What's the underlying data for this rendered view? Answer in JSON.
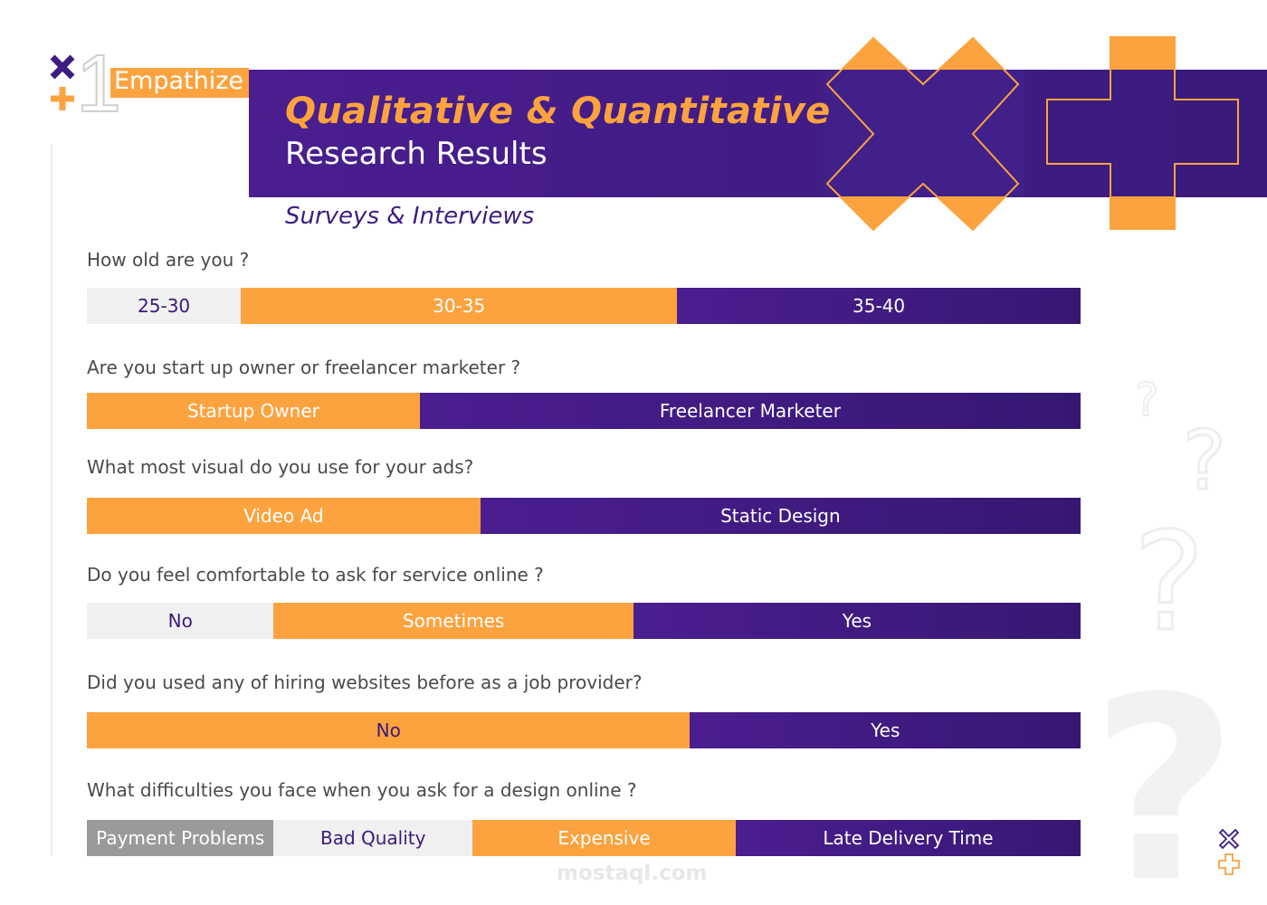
{
  "header": {
    "step_number": "1",
    "step_label": "Empathize",
    "title_main": "Qualitative & Quantitative",
    "title_sub": "Research Results",
    "section_subtitle": "Surveys & Interviews"
  },
  "questions": [
    {
      "text": "How old are you ?",
      "segments": [
        {
          "label": "25-30",
          "share": 15.5,
          "style": "light"
        },
        {
          "label": "30-35",
          "share": 43.9,
          "style": "orange"
        },
        {
          "label": "35-40",
          "share": 40.6,
          "style": "purple"
        }
      ]
    },
    {
      "text": "Are you start up owner or freelancer marketer ?",
      "segments": [
        {
          "label": "Startup Owner",
          "share": 33.5,
          "style": "orange"
        },
        {
          "label": "Freelancer Marketer",
          "share": 66.5,
          "style": "purple"
        }
      ]
    },
    {
      "text": "What most visual do you use for your ads?",
      "segments": [
        {
          "label": "Video Ad",
          "share": 39.6,
          "style": "orange"
        },
        {
          "label": "Static Design",
          "share": 60.4,
          "style": "purple"
        }
      ]
    },
    {
      "text": "Do you feel comfortable to ask for service online ?",
      "segments": [
        {
          "label": "No",
          "share": 18.8,
          "style": "light"
        },
        {
          "label": "Sometimes",
          "share": 36.2,
          "style": "orange"
        },
        {
          "label": "Yes",
          "share": 45.0,
          "style": "purple"
        }
      ]
    },
    {
      "text": "Did you used any of hiring websites before as a job provider?",
      "segments": [
        {
          "label": "No",
          "share": 60.7,
          "style": "orange-dark"
        },
        {
          "label": "Yes",
          "share": 39.3,
          "style": "purple"
        }
      ]
    },
    {
      "text": "What difficulties you face when you ask for a design online ?",
      "segments": [
        {
          "label": "Payment Problems",
          "share": 18.8,
          "style": "gray"
        },
        {
          "label": "Bad Quality",
          "share": 20.0,
          "style": "light"
        },
        {
          "label": "Expensive",
          "share": 26.5,
          "style": "orange"
        },
        {
          "label": "Late Delivery Time",
          "share": 34.7,
          "style": "purple"
        }
      ]
    }
  ],
  "watermark": "mostaql.com",
  "colors": {
    "accent_orange": "#fca33f",
    "brand_purple": "#3e1d82",
    "light_segment": "#f0f0f0",
    "gray_segment": "#9a9a9a"
  }
}
